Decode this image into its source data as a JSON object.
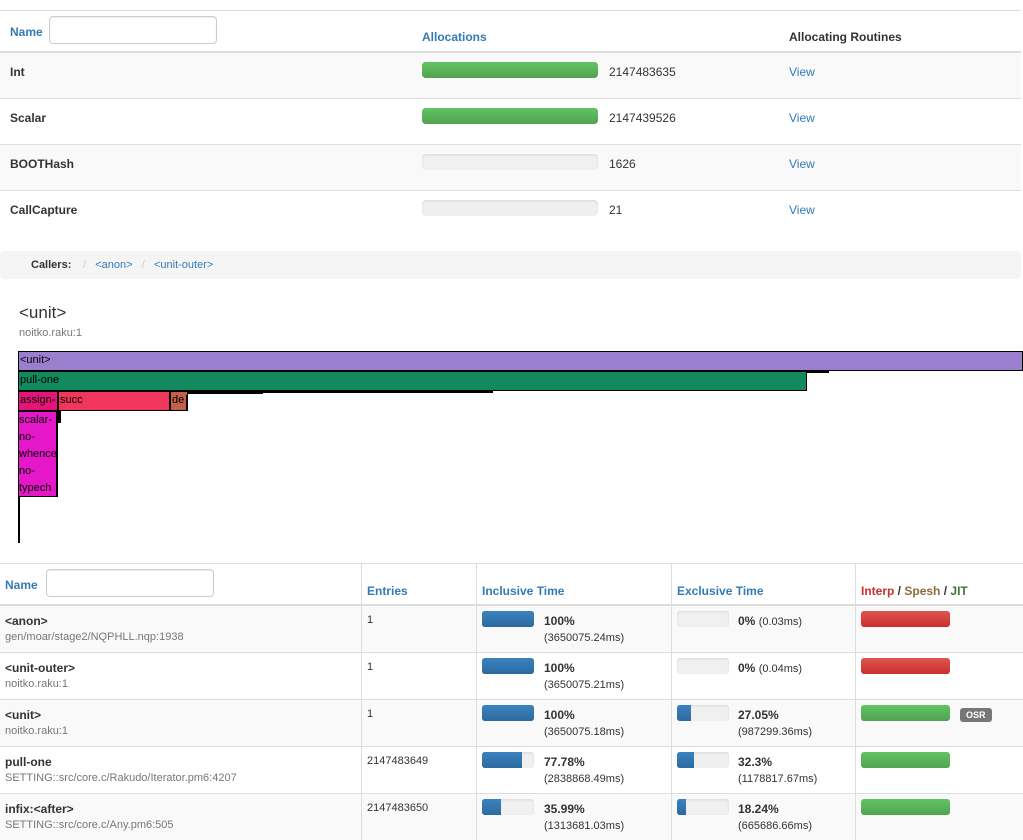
{
  "allocations": {
    "name_header": "Name",
    "name_filter_value": "",
    "allocations_header": "Allocations",
    "routines_header": "Allocating Routines",
    "rows": [
      {
        "name": "Int",
        "count": "2147483635",
        "fill": 1.0,
        "link": "View"
      },
      {
        "name": "Scalar",
        "count": "2147439526",
        "fill": 1.0,
        "link": "View"
      },
      {
        "name": "BOOTHash",
        "count": "1626",
        "fill": 0.0,
        "link": "View"
      },
      {
        "name": "CallCapture",
        "count": "21",
        "fill": 0.0,
        "link": "View"
      }
    ]
  },
  "breadcrumb": {
    "title": "Callers:",
    "separator": "/",
    "items": [
      "<anon>",
      "<unit-outer>"
    ]
  },
  "routine": {
    "title": "<unit>",
    "file": "noitko.raku:1"
  },
  "flamegraph": {
    "blocks": [
      {
        "label": "<unit>",
        "color": "#9b7fcf"
      },
      {
        "label": "pull-one",
        "color": "#138a5e"
      },
      {
        "label": "assign-",
        "color": "#e8137a"
      },
      {
        "label": "succ",
        "color": "#f0365a"
      },
      {
        "label": "de",
        "color": "#c2604c"
      },
      {
        "label": "scalar-",
        "color": "#e617c8"
      },
      {
        "label": "no-",
        "color": "#e617c8"
      },
      {
        "label": "whence",
        "color": "#e617c8"
      },
      {
        "label": "no-",
        "color": "#e617c8"
      },
      {
        "label": "typech",
        "color": "#e617c8"
      }
    ]
  },
  "routines": {
    "name_header": "Name",
    "name_filter_value": "",
    "entries_header": "Entries",
    "inclusive_header": "Inclusive Time",
    "exclusive_header": "Exclusive Time",
    "jit_header": {
      "interp": "Interp",
      "sep1": " / ",
      "spesh": "Spesh",
      "sep2": " / ",
      "jit": "JIT"
    },
    "colors": {
      "interp": "#c9302c",
      "spesh": "#8a6d3b",
      "jit": "#3c763d"
    },
    "rows": [
      {
        "name": "<anon>",
        "file": "gen/moar/stage2/NQPHLL.nqp:1938",
        "entries": "1",
        "incl_pct": "100%",
        "incl_fill": 1.0,
        "incl_ms": "(3650075.24ms)",
        "excl_pct": "0%",
        "excl_fill": 0.0,
        "excl_ms": "(0.03ms)",
        "excl_inline": true,
        "jit": "interp",
        "osr": ""
      },
      {
        "name": "<unit-outer>",
        "file": "noitko.raku:1",
        "entries": "1",
        "incl_pct": "100%",
        "incl_fill": 1.0,
        "incl_ms": "(3650075.21ms)",
        "excl_pct": "0%",
        "excl_fill": 0.0,
        "excl_ms": "(0.04ms)",
        "excl_inline": true,
        "jit": "interp",
        "osr": ""
      },
      {
        "name": "<unit>",
        "file": "noitko.raku:1",
        "entries": "1",
        "incl_pct": "100%",
        "incl_fill": 1.0,
        "incl_ms": "(3650075.18ms)",
        "excl_pct": "27.05%",
        "excl_fill": 0.2705,
        "excl_ms": "(987299.36ms)",
        "excl_inline": false,
        "jit": "jit",
        "osr": "OSR"
      },
      {
        "name": "pull-one",
        "file": "SETTING::src/core.c/Rakudo/Iterator.pm6:4207",
        "entries": "2147483649",
        "incl_pct": "77.78%",
        "incl_fill": 0.7778,
        "incl_ms": "(2838868.49ms)",
        "excl_pct": "32.3%",
        "excl_fill": 0.323,
        "excl_ms": "(1178817.67ms)",
        "excl_inline": false,
        "jit": "jit",
        "osr": ""
      },
      {
        "name": "infix:<after>",
        "file": "SETTING::src/core.c/Any.pm6:505",
        "entries": "2147483650",
        "incl_pct": "35.99%",
        "incl_fill": 0.3599,
        "incl_ms": "(1313681.03ms)",
        "excl_pct": "18.24%",
        "excl_fill": 0.1824,
        "excl_ms": "(665686.66ms)",
        "excl_inline": false,
        "jit": "jit",
        "osr": ""
      }
    ]
  }
}
